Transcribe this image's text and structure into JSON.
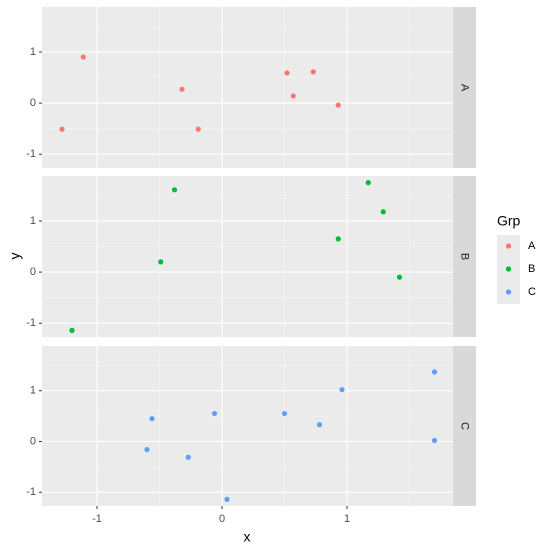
{
  "chart_data": {
    "type": "scatter",
    "x_label": "x",
    "y_label": "y",
    "legend_title": "Grp",
    "xlim": [
      -1.44,
      1.848
    ],
    "xticks": [
      -1,
      0,
      1
    ],
    "ylim": [
      -1.27,
      1.88
    ],
    "yticks": [
      -1,
      0,
      1
    ],
    "grid": true,
    "legend": "right",
    "series": [
      {
        "name": "A",
        "color": "#F8766D",
        "x": [
          -1.28,
          -1.11,
          -0.32,
          -0.19,
          0.52,
          0.57,
          0.73,
          0.93
        ],
        "values": [
          -0.51,
          0.9,
          0.27,
          -0.51,
          0.59,
          0.14,
          0.61,
          -0.04
        ]
      },
      {
        "name": "B",
        "color": "#00BA38",
        "x": [
          -1.2,
          -0.49,
          -0.38,
          0.93,
          1.17,
          1.29,
          1.42
        ],
        "values": [
          -1.14,
          0.2,
          1.61,
          0.65,
          1.75,
          1.18,
          -0.1
        ]
      },
      {
        "name": "C",
        "color": "#619CFF",
        "x": [
          -0.6,
          -0.56,
          -0.27,
          -0.06,
          0.04,
          0.5,
          0.78,
          0.96,
          1.7,
          1.7
        ],
        "values": [
          -0.16,
          0.45,
          -0.31,
          0.55,
          -1.14,
          0.55,
          0.33,
          1.02,
          1.37,
          0.02
        ]
      }
    ]
  }
}
